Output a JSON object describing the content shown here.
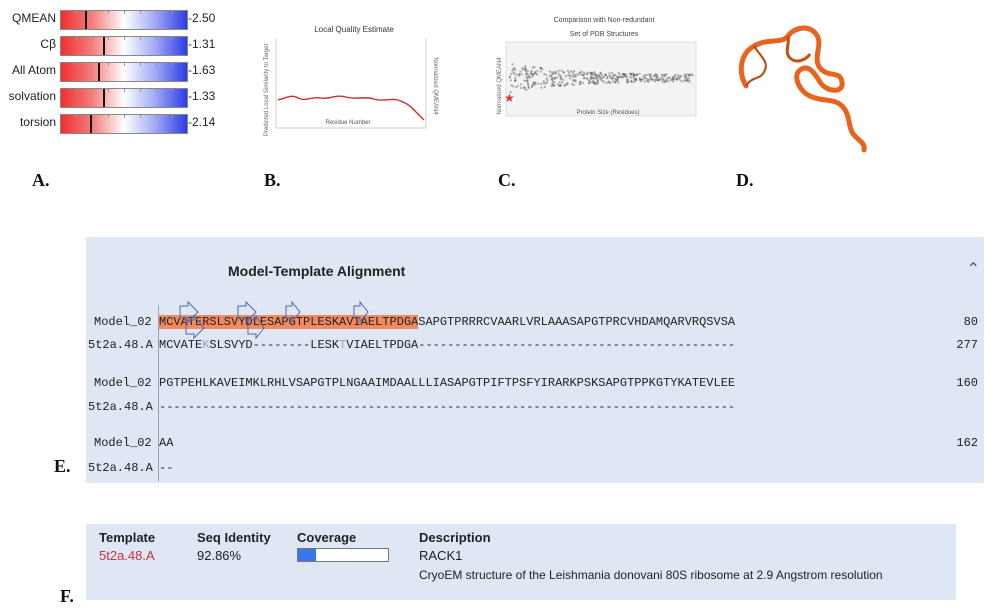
{
  "panel_letters": [
    "A.",
    "B.",
    "C.",
    "D.",
    "E.",
    "F."
  ],
  "panel_a": {
    "rows": [
      {
        "label": "QMEAN",
        "value": "-2.50",
        "score": -2.5
      },
      {
        "label": "Cβ",
        "value": "-1.31",
        "score": -1.31
      },
      {
        "label": "All Atom",
        "value": "-1.63",
        "score": -1.63
      },
      {
        "label": "solvation",
        "value": "-1.33",
        "score": -1.33
      },
      {
        "label": "torsion",
        "value": "-2.14",
        "score": -2.14
      }
    ]
  },
  "panel_b": {
    "title": "Local Quality Estimate",
    "ylabel_left": "Predicted Local Similarity to Target",
    "ylabel_right": "Normalized QMEAN4",
    "xlabel": "Residue Number",
    "line_color": "#d62828"
  },
  "panel_c": {
    "title_line1": "Comparison with Non-redundant",
    "title_line2": "Set of PDB Structures",
    "ylabel": "Normalized QMEAN4",
    "xlabel": "Protein Size (Residues)",
    "marker_color": "#e03030"
  },
  "panel_d": {
    "ribbon_color": "#e8641e"
  },
  "alignment": {
    "title": "Model-Template Alignment",
    "blocks": [
      {
        "model_name": "Model_02",
        "model_highlight": "MCVATERSLSVYDLESAPGTPLESKAVIAELTPDGA",
        "model_rest": "SAPGTPRRRCVAARLVRLAAASAPGTPRCVHDAMQARVRQSVSA",
        "model_end": "80",
        "template_name": "5t2a.48.A",
        "template_seq_a": "MCVATE",
        "template_seq_faint1": "K",
        "template_seq_b": "SLSVYD--------LESK",
        "template_seq_faint2": "T",
        "template_seq_c": "VIAELTPDGA--------------------------------------------",
        "template_end": "277"
      },
      {
        "model_name": "Model_02",
        "model_seq": "PGTPEHLKAVEIMKLRHLVSAPGTPLNGAAIMDAALLLIASAPGTPIFTPSFYIRARKPSKSAPGTPPKGTYKATEVLEE",
        "model_end": "160",
        "template_name": "5t2a.48.A",
        "template_seq": "--------------------------------------------------------------------------------",
        "template_end": ""
      },
      {
        "model_name": "Model_02",
        "model_seq": "AA",
        "model_end": "162",
        "template_name": "5t2a.48.A",
        "template_seq": "--",
        "template_end": ""
      }
    ]
  },
  "template_table": {
    "headers": {
      "template": "Template",
      "seq_identity": "Seq Identity",
      "coverage": "Coverage",
      "description": "Description"
    },
    "template": "5t2a.48.A",
    "seq_identity": "92.86%",
    "coverage_fraction": 0.2,
    "description_title": "RACK1",
    "description_text": "CryoEM structure of the Leishmania donovani 80S ribosome at 2.9 Angstrom resolution"
  }
}
